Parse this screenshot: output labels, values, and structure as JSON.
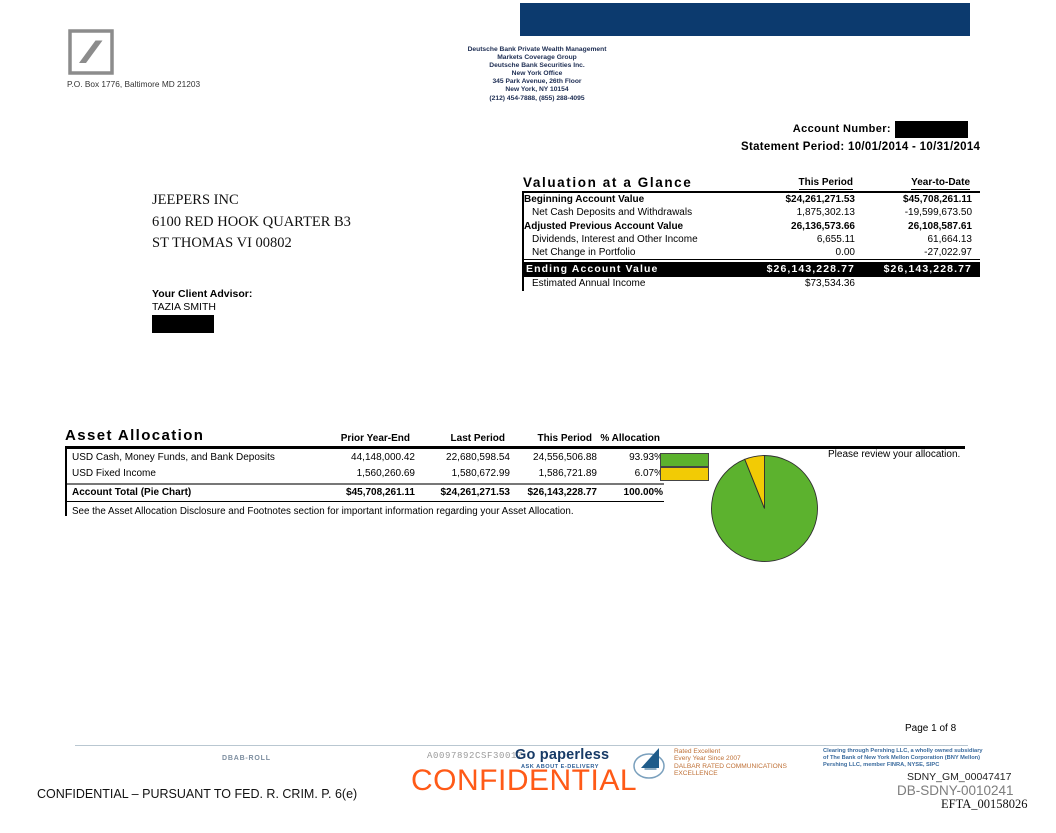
{
  "colors": {
    "navy_bar": "#0c3a6e",
    "cash_green": "#5cb22e",
    "fixed_income_yellow": "#f2cb05",
    "stamp_orange": "#ff5a17"
  },
  "header": {
    "logo_caption": "P.O. Box 1776, Baltimore MD 21203",
    "bank_address": [
      "Deutsche Bank Private Wealth Management",
      "Markets Coverage Group",
      "Deutsche Bank Securities Inc.",
      "New York Office",
      "345 Park Avenue, 26th Floor",
      "New York, NY  10154",
      "(212) 454-7888, (855) 288-4095"
    ],
    "account_number_label": "Account Number:",
    "statement_period": "Statement Period: 10/01/2014 - 10/31/2014"
  },
  "client": {
    "address": [
      "JEEPERS INC",
      "6100 RED HOOK QUARTER B3",
      "ST THOMAS VI 00802"
    ],
    "advisor_label": "Your Client Advisor:",
    "advisor_name": "TAZIA SMITH"
  },
  "valuation": {
    "title": "Valuation at a Glance",
    "col_headers": [
      "This Period",
      "Year-to-Date"
    ],
    "rows": [
      {
        "label": "Beginning Account Value",
        "this_period": "$24,261,271.53",
        "ytd": "$45,708,261.11",
        "bold": true
      },
      {
        "label": "Net Cash Deposits and Withdrawals",
        "this_period": "1,875,302.13",
        "ytd": "-19,599,673.50",
        "bold": false
      },
      {
        "label": "Adjusted Previous Account Value",
        "this_period": "26,136,573.66",
        "ytd": "26,108,587.61",
        "bold": true
      },
      {
        "label": "Dividends, Interest and Other Income",
        "this_period": "6,655.11",
        "ytd": "61,664.13",
        "bold": false
      },
      {
        "label": "Net Change in Portfolio",
        "this_period": "0.00",
        "ytd": "-27,022.97",
        "bold": false
      }
    ],
    "ending_row": {
      "label": "Ending Account Value",
      "this_period": "$26,143,228.77",
      "ytd": "$26,143,228.77"
    },
    "estimated_row": {
      "label": "Estimated Annual Income",
      "this_period": "$73,534.36",
      "ytd": ""
    }
  },
  "asset_allocation": {
    "title": "Asset Allocation",
    "col_headers": [
      "Prior Year-End",
      "Last Period",
      "This Period",
      "% Allocation"
    ],
    "rows": [
      {
        "label": "USD Cash, Money Funds, and Bank Deposits",
        "prior": "44,148,000.42",
        "last": "22,680,598.54",
        "this": "24,556,506.88",
        "alloc": "93.93%",
        "color": "#5cb22e"
      },
      {
        "label": "USD Fixed Income",
        "prior": "1,560,260.69",
        "last": "1,580,672.99",
        "this": "1,586,721.89",
        "alloc": "6.07%",
        "color": "#f2cb05"
      }
    ],
    "total_row": {
      "label": "Account Total (Pie Chart)",
      "prior": "$45,708,261.11",
      "last": "$24,261,271.53",
      "this": "$26,143,228.77",
      "alloc": "100.00%"
    },
    "footnote": "See the Asset Allocation Disclosure and Footnotes section for important information regarding your Asset Allocation.",
    "review_note": "Please review your allocation."
  },
  "chart_data": {
    "type": "pie",
    "title": "Account Total (Pie Chart)",
    "labels": [
      "USD Cash, Money Funds, and Bank Deposits",
      "USD Fixed Income"
    ],
    "values": [
      93.93,
      6.07
    ],
    "colors": [
      "#5cb22e",
      "#f2cb05"
    ],
    "legend_position": "left",
    "annotation": "Please review your allocation."
  },
  "footer": {
    "page_number": "Page 1 of 8",
    "dbab": "DBAB-ROLL",
    "doc_code": "A0097892CSF30017",
    "paperless_title": "Go paperless",
    "paperless_sub": "ASK ABOUT E-DELIVERY",
    "dalbar_lines": [
      "Rated Excellent",
      "Every Year Since 2007",
      "DALBAR RATED COMMUNICATIONS",
      "EXCELLENCE"
    ],
    "pershing_lines": [
      "Clearing through Pershing LLC, a wholly owned subsidiary",
      "of The Bank of New York Mellon Corporation (BNY Mellon)",
      "Pershing LLC, member FINRA, NYSE, SIPC"
    ],
    "bates1": "SDNY_GM_00047417",
    "bates2": "DB-SDNY-0010241",
    "bates3": "EFTA_00158026",
    "confidential_stamp": "CONFIDENTIAL",
    "confidential_legend": "CONFIDENTIAL – PURSUANT TO FED. R. CRIM. P. 6(e)"
  }
}
